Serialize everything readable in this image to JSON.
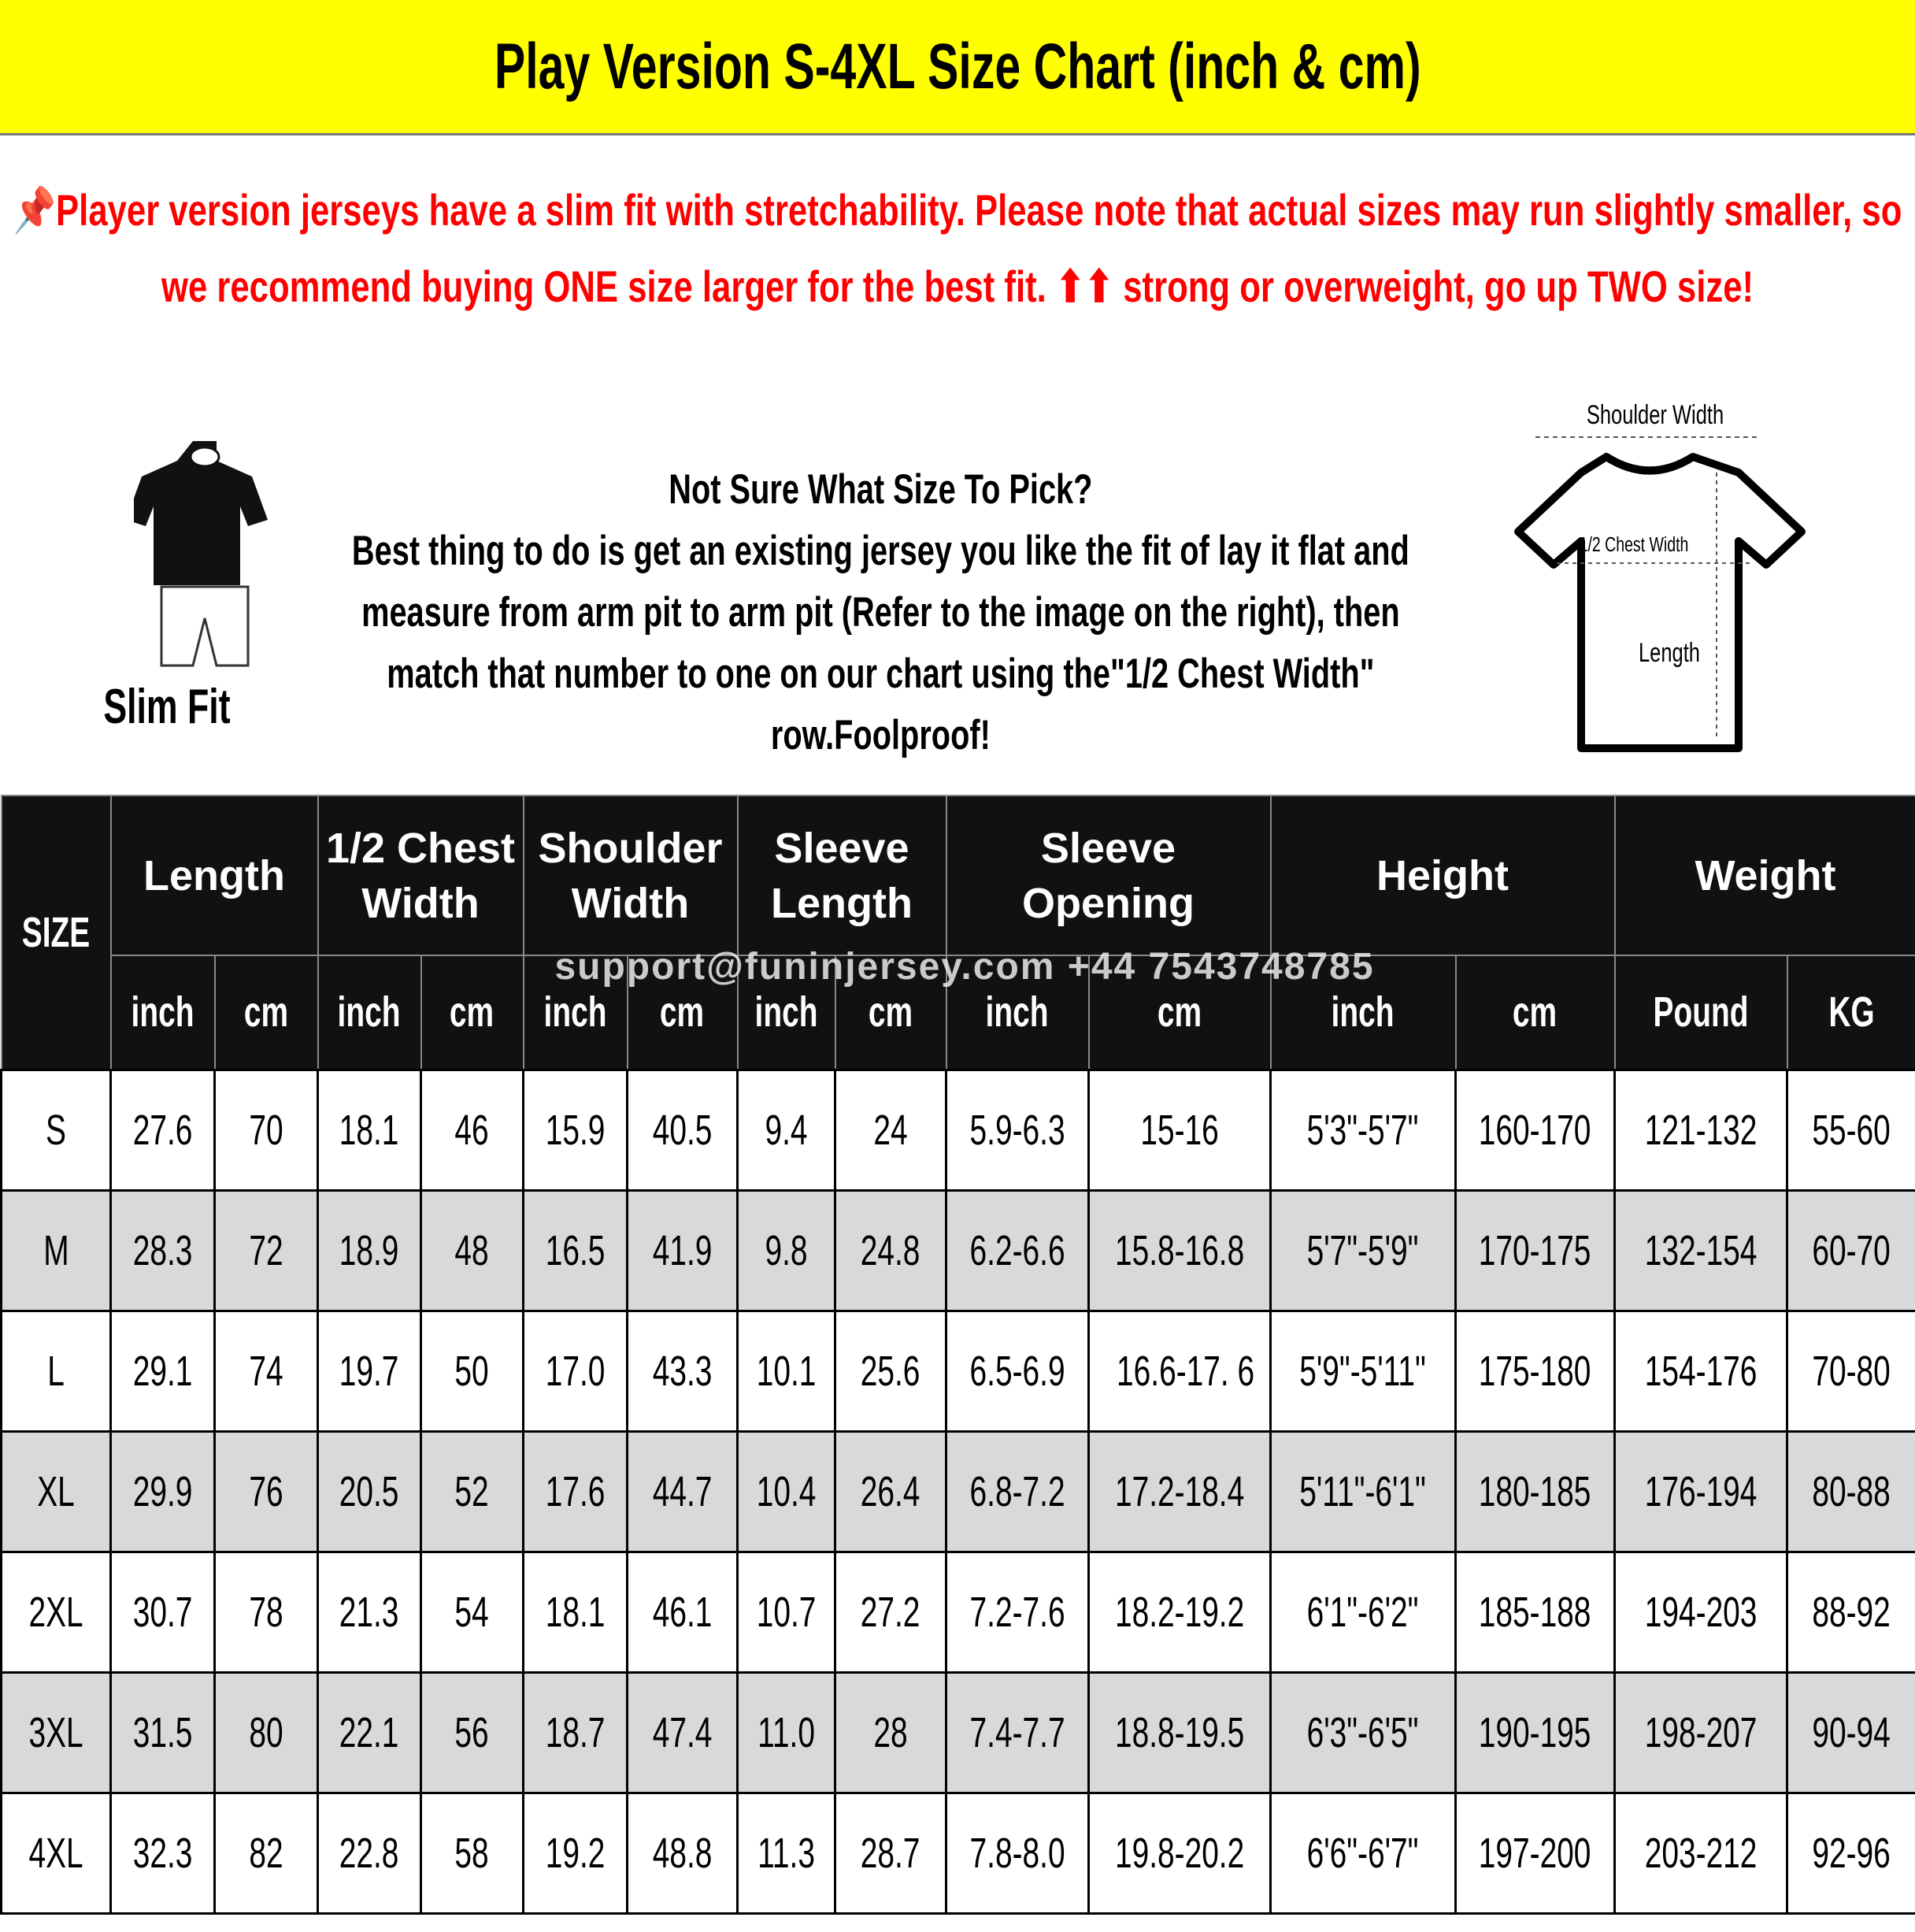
{
  "header": {
    "title": "Play Version S-4XL Size Chart (inch & cm)"
  },
  "notice": {
    "text": "📌Player version jerseys have a slim fit with stretchability. Please note that actual sizes may run slightly smaller, so we recommend buying ONE size larger for the best fit. ⬆⬆ strong or overweight, go up TWO size!"
  },
  "guide": {
    "fit_label": "Slim Fit",
    "heading": "Not Sure What Size To Pick?",
    "body": "Best thing to do is get an existing jersey you like the fit of lay it flat and measure from arm pit to arm pit (Refer to the image on the right), then match that number to one on our chart using the\"1/2 Chest Width\" row.Foolproof!"
  },
  "diagram": {
    "shoulder_label": "Shoulder Width",
    "chest_label": "1/2 Chest Width",
    "length_label": "Length"
  },
  "watermark": "support@funinjersey.com +44 7543748785",
  "table": {
    "size_label": "SIZE",
    "groups": [
      "Length",
      "1/2 Chest Width",
      "Shoulder Width",
      "Sleeve Length",
      "Sleeve Opening",
      "Height",
      "Weight"
    ],
    "units": [
      "inch",
      "cm",
      "inch",
      "cm",
      "inch",
      "cm",
      "inch",
      "cm",
      "inch",
      "cm",
      "inch",
      "cm",
      "Pound",
      "KG"
    ],
    "rows": [
      [
        "S",
        "27.6",
        "70",
        "18.1",
        "46",
        "15.9",
        "40.5",
        "9.4",
        "24",
        "5.9-6.3",
        "15-16",
        "5'3\"-5'7\"",
        "160-170",
        "121-132",
        "55-60"
      ],
      [
        "M",
        "28.3",
        "72",
        "18.9",
        "48",
        "16.5",
        "41.9",
        "9.8",
        "24.8",
        "6.2-6.6",
        "15.8-16.8",
        "5'7\"-5'9\"",
        "170-175",
        "132-154",
        "60-70"
      ],
      [
        "L",
        "29.1",
        "74",
        "19.7",
        "50",
        "17.0",
        "43.3",
        "10.1",
        "25.6",
        "6.5-6.9",
        "16.6-17. 6",
        "5'9\"-5'11\"",
        "175-180",
        "154-176",
        "70-80"
      ],
      [
        "XL",
        "29.9",
        "76",
        "20.5",
        "52",
        "17.6",
        "44.7",
        "10.4",
        "26.4",
        "6.8-7.2",
        "17.2-18.4",
        "5'11\"-6'1\"",
        "180-185",
        "176-194",
        "80-88"
      ],
      [
        "2XL",
        "30.7",
        "78",
        "21.3",
        "54",
        "18.1",
        "46.1",
        "10.7",
        "27.2",
        "7.2-7.6",
        "18.2-19.2",
        "6'1\"-6'2\"",
        "185-188",
        "194-203",
        "88-92"
      ],
      [
        "3XL",
        "31.5",
        "80",
        "22.1",
        "56",
        "18.7",
        "47.4",
        "11.0",
        "28",
        "7.4-7.7",
        "18.8-19.5",
        "6'3\"-6'5\"",
        "190-195",
        "198-207",
        "90-94"
      ],
      [
        "4XL",
        "32.3",
        "82",
        "22.8",
        "58",
        "19.2",
        "48.8",
        "11.3",
        "28.7",
        "7.8-8.0",
        "19.8-20.2",
        "6'6\"-6'7\"",
        "197-200",
        "203-212",
        "92-96"
      ]
    ]
  }
}
